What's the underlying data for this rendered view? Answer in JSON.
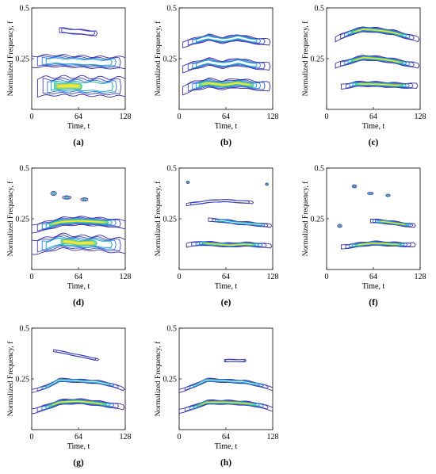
{
  "chart_data": [
    {
      "panel": "(a)",
      "type": "contour",
      "xlabel": "Time, t",
      "ylabel": "Normalized Frequency, f",
      "xticks": [
        0,
        64,
        128
      ],
      "yticks": [
        0.25,
        0.5
      ],
      "xlim": [
        0,
        128
      ],
      "ylim": [
        0,
        0.5
      ],
      "series": [
        {
          "shape": "ridge",
          "x": [
            8,
            30,
            64,
            100,
            128
          ],
          "y": [
            0.11,
            0.115,
            0.115,
            0.11,
            0.11
          ],
          "width": 0.045,
          "style": "filled-contours",
          "peak_x": 45
        },
        {
          "shape": "ridge",
          "x": [
            0,
            30,
            64,
            100,
            128
          ],
          "y": [
            0.235,
            0.24,
            0.235,
            0.23,
            0.23
          ],
          "width": 0.028,
          "style": "thin-contours"
        },
        {
          "shape": "ridge",
          "x": [
            38,
            55,
            70,
            88
          ],
          "y": [
            0.39,
            0.385,
            0.38,
            0.375
          ],
          "width": 0.012,
          "style": "outline"
        }
      ]
    },
    {
      "panel": "(b)",
      "type": "contour",
      "xlabel": "Time, t",
      "ylabel": "Normalized Frequency, f",
      "xticks": [
        0,
        64,
        128
      ],
      "yticks": [
        0.25,
        0.5
      ],
      "xlim": [
        0,
        128
      ],
      "ylim": [
        0,
        0.5
      ],
      "series": [
        {
          "shape": "ridge",
          "x": [
            5,
            20,
            40,
            60,
            80,
            100,
            123
          ],
          "y": [
            0.095,
            0.115,
            0.13,
            0.12,
            0.13,
            0.12,
            0.11
          ],
          "width": 0.022,
          "style": "filled-contours"
        },
        {
          "shape": "ridge",
          "x": [
            5,
            20,
            40,
            60,
            80,
            100,
            123
          ],
          "y": [
            0.2,
            0.215,
            0.235,
            0.22,
            0.235,
            0.22,
            0.21
          ],
          "width": 0.018,
          "style": "thin-contours"
        },
        {
          "shape": "ridge",
          "x": [
            5,
            20,
            40,
            60,
            80,
            100,
            123
          ],
          "y": [
            0.32,
            0.335,
            0.355,
            0.34,
            0.355,
            0.34,
            0.33
          ],
          "width": 0.015,
          "style": "thin-contours"
        }
      ]
    },
    {
      "panel": "(c)",
      "type": "contour",
      "xlabel": "Time, t",
      "ylabel": "Normalized Frequency, f",
      "xticks": [
        0,
        64,
        128
      ],
      "yticks": [
        0.25,
        0.5
      ],
      "xlim": [
        0,
        128
      ],
      "ylim": [
        0,
        0.5
      ],
      "series": [
        {
          "shape": "ridge",
          "x": [
            20,
            40,
            64,
            90,
            123
          ],
          "y": [
            0.11,
            0.125,
            0.125,
            0.12,
            0.115
          ],
          "width": 0.012,
          "style": "filled-contours"
        },
        {
          "shape": "ridge",
          "x": [
            12,
            30,
            50,
            70,
            90,
            110,
            125
          ],
          "y": [
            0.215,
            0.235,
            0.255,
            0.25,
            0.24,
            0.225,
            0.215
          ],
          "width": 0.012,
          "style": "filled-contours"
        },
        {
          "shape": "ridge",
          "x": [
            12,
            30,
            50,
            70,
            90,
            110,
            125
          ],
          "y": [
            0.345,
            0.375,
            0.395,
            0.39,
            0.38,
            0.36,
            0.345
          ],
          "width": 0.012,
          "style": "filled-contours"
        }
      ]
    },
    {
      "panel": "(d)",
      "type": "contour",
      "xlabel": "Time, t",
      "ylabel": "Normalized Frequency, f",
      "xticks": [
        0,
        64,
        128
      ],
      "yticks": [
        0.25,
        0.5
      ],
      "xlim": [
        0,
        128
      ],
      "ylim": [
        0,
        0.5
      ],
      "series": [
        {
          "shape": "ridge",
          "x": [
            0,
            20,
            40,
            64,
            90,
            110,
            128
          ],
          "y": [
            0.11,
            0.12,
            0.14,
            0.13,
            0.13,
            0.12,
            0.115
          ],
          "width": 0.035,
          "style": "filled-contours",
          "peak_x": 64
        },
        {
          "shape": "ridge",
          "x": [
            0,
            20,
            40,
            64,
            90,
            110,
            128
          ],
          "y": [
            0.2,
            0.215,
            0.235,
            0.24,
            0.235,
            0.23,
            0.22
          ],
          "width": 0.02,
          "style": "filled-contours"
        },
        {
          "shape": "blob",
          "x": 30,
          "y": 0.375,
          "rx": 4,
          "ry": 0.01
        },
        {
          "shape": "blob",
          "x": 48,
          "y": 0.355,
          "rx": 6,
          "ry": 0.008
        },
        {
          "shape": "blob",
          "x": 72,
          "y": 0.345,
          "rx": 5,
          "ry": 0.008
        }
      ]
    },
    {
      "panel": "(e)",
      "type": "contour",
      "xlabel": "Time, t",
      "ylabel": "Normalized Frequency, f",
      "xticks": [
        0,
        64,
        128
      ],
      "yticks": [
        0.25,
        0.5
      ],
      "xlim": [
        0,
        128
      ],
      "ylim": [
        0,
        0.5
      ],
      "series": [
        {
          "shape": "ridge",
          "x": [
            10,
            30,
            50,
            70,
            90,
            110,
            125
          ],
          "y": [
            0.12,
            0.13,
            0.125,
            0.12,
            0.125,
            0.12,
            0.115
          ],
          "width": 0.01,
          "style": "filled-contours"
        },
        {
          "shape": "ridge",
          "x": [
            40,
            60,
            80,
            100,
            125
          ],
          "y": [
            0.245,
            0.24,
            0.23,
            0.225,
            0.215
          ],
          "width": 0.008,
          "style": "thin-contours"
        },
        {
          "shape": "ridge",
          "x": [
            10,
            40,
            60,
            80,
            100
          ],
          "y": [
            0.32,
            0.335,
            0.34,
            0.335,
            0.33
          ],
          "width": 0.006,
          "style": "outline"
        },
        {
          "shape": "blob",
          "x": 12,
          "y": 0.43,
          "rx": 2,
          "ry": 0.006
        },
        {
          "shape": "blob",
          "x": 120,
          "y": 0.42,
          "rx": 2,
          "ry": 0.006
        }
      ]
    },
    {
      "panel": "(f)",
      "type": "contour",
      "xlabel": "Time, t",
      "ylabel": "Normalized Frequency, f",
      "xticks": [
        0,
        64,
        128
      ],
      "yticks": [
        0.25,
        0.5
      ],
      "xlim": [
        0,
        128
      ],
      "ylim": [
        0,
        0.5
      ],
      "series": [
        {
          "shape": "ridge",
          "x": [
            20,
            40,
            64,
            90,
            120
          ],
          "y": [
            0.11,
            0.12,
            0.13,
            0.125,
            0.12
          ],
          "width": 0.01,
          "style": "filled-contours"
        },
        {
          "shape": "ridge",
          "x": [
            60,
            80,
            100,
            120
          ],
          "y": [
            0.24,
            0.235,
            0.225,
            0.215
          ],
          "width": 0.009,
          "style": "filled-contours"
        },
        {
          "shape": "blob",
          "x": 18,
          "y": 0.215,
          "rx": 3,
          "ry": 0.008
        },
        {
          "shape": "blob",
          "x": 38,
          "y": 0.41,
          "rx": 3,
          "ry": 0.008
        },
        {
          "shape": "blob",
          "x": 60,
          "y": 0.375,
          "rx": 4,
          "ry": 0.006
        },
        {
          "shape": "blob",
          "x": 84,
          "y": 0.365,
          "rx": 3,
          "ry": 0.006
        }
      ]
    },
    {
      "panel": "(g)",
      "type": "contour",
      "xlabel": "Time, t",
      "ylabel": "Normalized Frequency, f",
      "xticks": [
        0,
        64,
        128
      ],
      "yticks": [
        0.25,
        0.5
      ],
      "xlim": [
        0,
        128
      ],
      "ylim": [
        0,
        0.5
      ],
      "series": [
        {
          "shape": "ridge",
          "x": [
            0,
            20,
            38,
            64,
            90,
            110,
            125
          ],
          "y": [
            0.09,
            0.11,
            0.135,
            0.14,
            0.13,
            0.12,
            0.11
          ],
          "width": 0.012,
          "style": "filled-contours"
        },
        {
          "shape": "ridge",
          "x": [
            0,
            20,
            38,
            64,
            90,
            110,
            125
          ],
          "y": [
            0.19,
            0.21,
            0.245,
            0.24,
            0.235,
            0.22,
            0.2
          ],
          "width": 0.008,
          "style": "thin-contours"
        },
        {
          "shape": "ridge",
          "x": [
            30,
            50,
            70,
            90
          ],
          "y": [
            0.39,
            0.375,
            0.36,
            0.345
          ],
          "width": 0.005,
          "style": "outline"
        }
      ]
    },
    {
      "panel": "(h)",
      "type": "contour",
      "xlabel": "Time, t",
      "ylabel": "Normalized Frequency, f",
      "xticks": [
        0,
        64,
        128
      ],
      "yticks": [
        0.25,
        0.5
      ],
      "xlim": [
        0,
        128
      ],
      "ylim": [
        0,
        0.5
      ],
      "series": [
        {
          "shape": "ridge",
          "x": [
            0,
            20,
            38,
            64,
            90,
            110,
            128
          ],
          "y": [
            0.09,
            0.11,
            0.135,
            0.135,
            0.13,
            0.12,
            0.1
          ],
          "width": 0.01,
          "style": "filled-contours"
        },
        {
          "shape": "ridge",
          "x": [
            0,
            20,
            38,
            64,
            90,
            110,
            128
          ],
          "y": [
            0.19,
            0.215,
            0.245,
            0.24,
            0.235,
            0.22,
            0.2
          ],
          "width": 0.008,
          "style": "thin-contours"
        },
        {
          "shape": "ridge",
          "x": [
            62,
            75,
            90
          ],
          "y": [
            0.34,
            0.34,
            0.34
          ],
          "width": 0.006,
          "style": "outline"
        }
      ]
    }
  ]
}
